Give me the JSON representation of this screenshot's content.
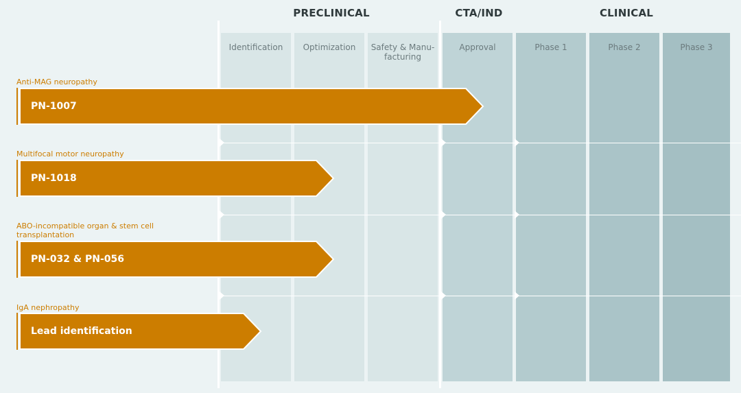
{
  "stages": {
    "preclinical": "PRECLINICAL",
    "cta_ind": "CTA/IND",
    "clinical": "CLINICAL"
  },
  "phases": {
    "identification": "Identification",
    "optimization": "Optimization",
    "safety_line1": "Safety & Manu-",
    "safety_line2": "facturing",
    "approval": "Approval",
    "phase1": "Phase 1",
    "phase2": "Phase 2",
    "phase3": "Phase 3"
  },
  "programs": [
    {
      "indication": "Anti-MAG neuropathy",
      "indication_line2": "",
      "name": "PN-1007",
      "progress": "Approval"
    },
    {
      "indication": "Multifocal motor neuropathy",
      "indication_line2": "",
      "name": "PN-1018",
      "progress": "Optimization"
    },
    {
      "indication": "ABO-incompatible organ & stem cell",
      "indication_line2": "transplantation",
      "name": "PN-032 & PN-056",
      "progress": "Optimization"
    },
    {
      "indication": "IgA nephropathy",
      "indication_line2": "",
      "name": "Lead identification",
      "progress": "Identification"
    }
  ],
  "colors": {
    "background": "#ecf3f4",
    "bar": "#cc7d00",
    "indication_text": "#cc7d00",
    "col_preclinical": "#d9e6e7",
    "col_cta": "#bfd4d7",
    "col_clinical_1": "#b3cbce",
    "col_clinical_2": "#aac4c8",
    "col_clinical_3": "#a4bfc3"
  }
}
